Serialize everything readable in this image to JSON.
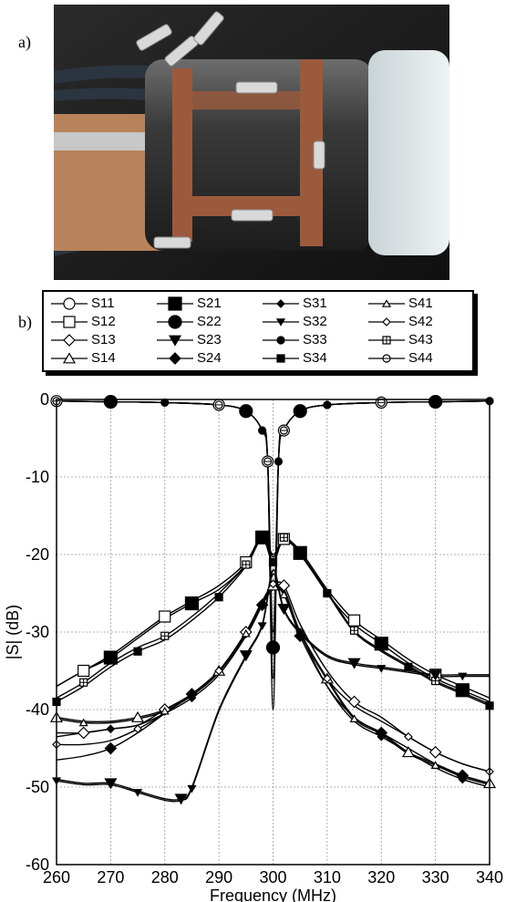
{
  "labels": {
    "a": "a)",
    "b": "b)"
  },
  "legend": [
    {
      "name": "S11",
      "marker": "circle-open"
    },
    {
      "name": "S21",
      "marker": "square-filled-large"
    },
    {
      "name": "S31",
      "marker": "diamond-filled-small"
    },
    {
      "name": "S41",
      "marker": "triangle-open-small"
    },
    {
      "name": "S12",
      "marker": "square-open"
    },
    {
      "name": "S22",
      "marker": "circle-filled-large"
    },
    {
      "name": "S32",
      "marker": "triangle-down-filled-small"
    },
    {
      "name": "S42",
      "marker": "diamond-open-small"
    },
    {
      "name": "S13",
      "marker": "diamond-open"
    },
    {
      "name": "S23",
      "marker": "triangle-down-filled"
    },
    {
      "name": "S33",
      "marker": "circle-filled-small"
    },
    {
      "name": "S43",
      "marker": "square-cross-small"
    },
    {
      "name": "S14",
      "marker": "triangle-open"
    },
    {
      "name": "S24",
      "marker": "diamond-filled"
    },
    {
      "name": "S34",
      "marker": "square-filled-small"
    },
    {
      "name": "S44",
      "marker": "circle-line-small"
    }
  ],
  "chart_data": {
    "type": "line",
    "xlabel": "Frequency (MHz)",
    "ylabel": "|S| (dB)",
    "xlim": [
      260,
      340
    ],
    "ylim": [
      -60,
      0
    ],
    "xticks": [
      260,
      270,
      280,
      290,
      300,
      310,
      320,
      330,
      340
    ],
    "yticks": [
      0,
      -10,
      -20,
      -30,
      -40,
      -50,
      -60
    ],
    "grid": true,
    "series": [
      {
        "name": "S11",
        "x": [
          260,
          270,
          280,
          290,
          295,
          298,
          299,
          300,
          301,
          302,
          305,
          310,
          320,
          330,
          340
        ],
        "y": [
          -0.2,
          -0.3,
          -0.4,
          -0.7,
          -1.5,
          -4,
          -8,
          -36,
          -8,
          -4,
          -1.5,
          -0.7,
          -0.4,
          -0.3,
          -0.2
        ]
      },
      {
        "name": "S22",
        "x": [
          260,
          270,
          280,
          290,
          295,
          298,
          299,
          300,
          301,
          302,
          305,
          310,
          320,
          330,
          340
        ],
        "y": [
          -0.2,
          -0.3,
          -0.4,
          -0.7,
          -1.5,
          -4,
          -8,
          -32,
          -8,
          -4,
          -1.5,
          -0.7,
          -0.4,
          -0.3,
          -0.2
        ]
      },
      {
        "name": "S33",
        "x": [
          260,
          270,
          280,
          290,
          295,
          298,
          299,
          300,
          301,
          302,
          305,
          310,
          320,
          330,
          340
        ],
        "y": [
          -0.2,
          -0.3,
          -0.4,
          -0.7,
          -1.5,
          -4,
          -8,
          -30,
          -8,
          -4,
          -1.5,
          -0.7,
          -0.4,
          -0.3,
          -0.2
        ]
      },
      {
        "name": "S44",
        "x": [
          260,
          270,
          280,
          290,
          295,
          298,
          299,
          300,
          301,
          302,
          305,
          310,
          320,
          330,
          340
        ],
        "y": [
          -0.2,
          -0.3,
          -0.4,
          -0.7,
          -1.5,
          -4,
          -8,
          -40,
          -8,
          -4,
          -1.5,
          -0.7,
          -0.4,
          -0.3,
          -0.2
        ]
      },
      {
        "name": "S12",
        "x": [
          260,
          265,
          270,
          275,
          280,
          285,
          290,
          295,
          298,
          300,
          302,
          305,
          310,
          315,
          320,
          325,
          330,
          335,
          340
        ],
        "y": [
          -37,
          -35,
          -33,
          -30.5,
          -28,
          -26,
          -24,
          -21,
          -17.5,
          -20,
          -18,
          -19.5,
          -24.5,
          -28.5,
          -31,
          -33.5,
          -35.5,
          -37,
          -38.5
        ]
      },
      {
        "name": "S21",
        "x": [
          260,
          265,
          270,
          275,
          280,
          285,
          290,
          295,
          298,
          300,
          302,
          305,
          310,
          315,
          320,
          325,
          330,
          335,
          340
        ],
        "y": [
          -37,
          -35,
          -33.3,
          -30.8,
          -28.3,
          -26.3,
          -24.5,
          -21.3,
          -17.8,
          -20.3,
          -18.3,
          -19.8,
          -25,
          -29,
          -31.5,
          -34,
          -36,
          -37.5,
          -39
        ]
      },
      {
        "name": "S34",
        "x": [
          260,
          265,
          270,
          275,
          280,
          285,
          290,
          295,
          298,
          300,
          302,
          305,
          310,
          315,
          320,
          325,
          330,
          335,
          340
        ],
        "y": [
          -39,
          -37,
          -34.5,
          -32.5,
          -31,
          -28.5,
          -25.5,
          -21.5,
          -18,
          -21,
          -18,
          -20,
          -25,
          -30,
          -32.5,
          -34.5,
          -36.5,
          -38,
          -39.5
        ]
      },
      {
        "name": "S43",
        "x": [
          260,
          265,
          270,
          275,
          280,
          285,
          290,
          295,
          298,
          300,
          302,
          305,
          310,
          315,
          320,
          325,
          330,
          335,
          340
        ],
        "y": [
          -38.5,
          -36.5,
          -34,
          -32,
          -30.5,
          -28,
          -25,
          -21.3,
          -17.8,
          -20.8,
          -17.8,
          -19.8,
          -24.8,
          -29.8,
          -32.3,
          -34.3,
          -36.3,
          -37.8,
          -39.3
        ]
      },
      {
        "name": "S23",
        "x": [
          260,
          265,
          270,
          275,
          280,
          283,
          285,
          290,
          295,
          298,
          300,
          302,
          305,
          310,
          315,
          320,
          325,
          330,
          335,
          340
        ],
        "y": [
          -49,
          -49.5,
          -49.5,
          -50.5,
          -51.5,
          -51.5,
          -50,
          -40,
          -33,
          -29,
          -22,
          -27,
          -30,
          -33,
          -34,
          -34.5,
          -35,
          -35.5,
          -35.5,
          -35.5
        ]
      },
      {
        "name": "S32",
        "x": [
          260,
          265,
          270,
          275,
          280,
          283,
          285,
          290,
          295,
          298,
          300,
          302,
          305,
          310,
          315,
          320,
          325,
          330,
          335,
          340
        ],
        "y": [
          -49.2,
          -49.7,
          -49.7,
          -50.7,
          -51.7,
          -51.7,
          -50.2,
          -40.2,
          -33.2,
          -29.2,
          -22.5,
          -27.2,
          -30.2,
          -33.2,
          -34.2,
          -34.7,
          -35.2,
          -35.7,
          -35.7,
          -35.7
        ]
      },
      {
        "name": "S13",
        "x": [
          260,
          265,
          270,
          275,
          280,
          285,
          290,
          295,
          298,
          300,
          302,
          305,
          310,
          315,
          320,
          325,
          330,
          335,
          340
        ],
        "y": [
          -43,
          -43,
          -42.5,
          -42,
          -40,
          -38,
          -35,
          -30,
          -26,
          -24,
          -24,
          -29,
          -35,
          -39,
          -41,
          -43.5,
          -45.5,
          -47,
          -48
        ]
      },
      {
        "name": "S31",
        "x": [
          260,
          265,
          270,
          275,
          280,
          285,
          290,
          295,
          298,
          300,
          302,
          305,
          310,
          315,
          320,
          325,
          330,
          335,
          340
        ],
        "y": [
          -43.5,
          -43,
          -42.5,
          -42,
          -40.5,
          -38.5,
          -35.5,
          -30.5,
          -26.5,
          -24.5,
          -24.5,
          -30,
          -37,
          -41.5,
          -43.5,
          -45.5,
          -47.5,
          -49,
          -50
        ]
      },
      {
        "name": "S14",
        "x": [
          260,
          265,
          270,
          275,
          280,
          285,
          290,
          295,
          298,
          300,
          302,
          305,
          310,
          315,
          320,
          325,
          330,
          335,
          340
        ],
        "y": [
          -41,
          -41.5,
          -41.5,
          -41,
          -40,
          -38,
          -35,
          -30,
          -26,
          -24,
          -25,
          -30,
          -36,
          -41,
          -43,
          -45.5,
          -47,
          -48.5,
          -49.5
        ]
      },
      {
        "name": "S41",
        "x": [
          260,
          265,
          270,
          275,
          280,
          285,
          290,
          295,
          298,
          300,
          302,
          305,
          310,
          315,
          320,
          325,
          330,
          335,
          340
        ],
        "y": [
          -41.2,
          -41.7,
          -41.7,
          -41.2,
          -40.2,
          -38.2,
          -35.2,
          -30.2,
          -26.2,
          -24.2,
          -25.2,
          -30.2,
          -36.2,
          -41.2,
          -43.2,
          -45.7,
          -47.2,
          -48.7,
          -49.7
        ]
      },
      {
        "name": "S24",
        "x": [
          260,
          265,
          270,
          275,
          280,
          285,
          290,
          295,
          298,
          300,
          302,
          305,
          310,
          315,
          320,
          325,
          330,
          335,
          340
        ],
        "y": [
          -46.5,
          -46,
          -45,
          -43,
          -40.5,
          -38,
          -35,
          -30.5,
          -26.5,
          -24,
          -25,
          -30.5,
          -37,
          -41,
          -43,
          -45,
          -47,
          -48.5,
          -49.5
        ]
      },
      {
        "name": "S42",
        "x": [
          260,
          265,
          270,
          275,
          280,
          285,
          290,
          295,
          298,
          300,
          302,
          305,
          310,
          315,
          320,
          325,
          330,
          335,
          340
        ],
        "y": [
          -44.5,
          -44.5,
          -44,
          -42.5,
          -40.5,
          -38,
          -35,
          -30.2,
          -26.2,
          -23.8,
          -25,
          -30,
          -36,
          -39.5,
          -41.5,
          -43.5,
          -45.5,
          -47,
          -48
        ]
      }
    ]
  }
}
